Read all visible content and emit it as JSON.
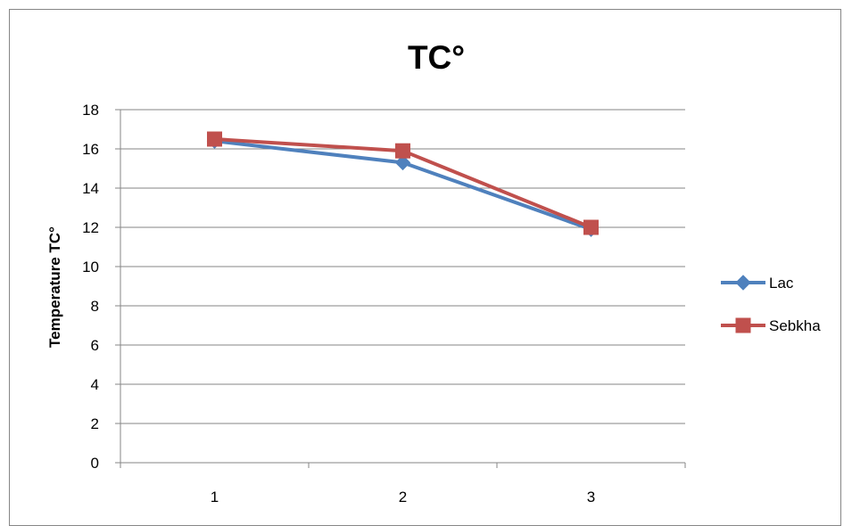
{
  "chart_data": {
    "type": "line",
    "title": "TC°",
    "xlabel": "",
    "ylabel": "Temperature TC°",
    "categories": [
      "1",
      "2",
      "3"
    ],
    "ylim": [
      0,
      18
    ],
    "yticks": [
      0,
      2,
      4,
      6,
      8,
      10,
      12,
      14,
      16,
      18
    ],
    "grid": "horizontal",
    "legend_position": "right",
    "series": [
      {
        "name": "Lac",
        "values": [
          16.4,
          15.3,
          11.9
        ],
        "color": "#4F81BD",
        "marker": "diamond"
      },
      {
        "name": "Sebkha",
        "values": [
          16.5,
          15.9,
          12.0
        ],
        "color": "#C0504D",
        "marker": "square"
      }
    ]
  }
}
